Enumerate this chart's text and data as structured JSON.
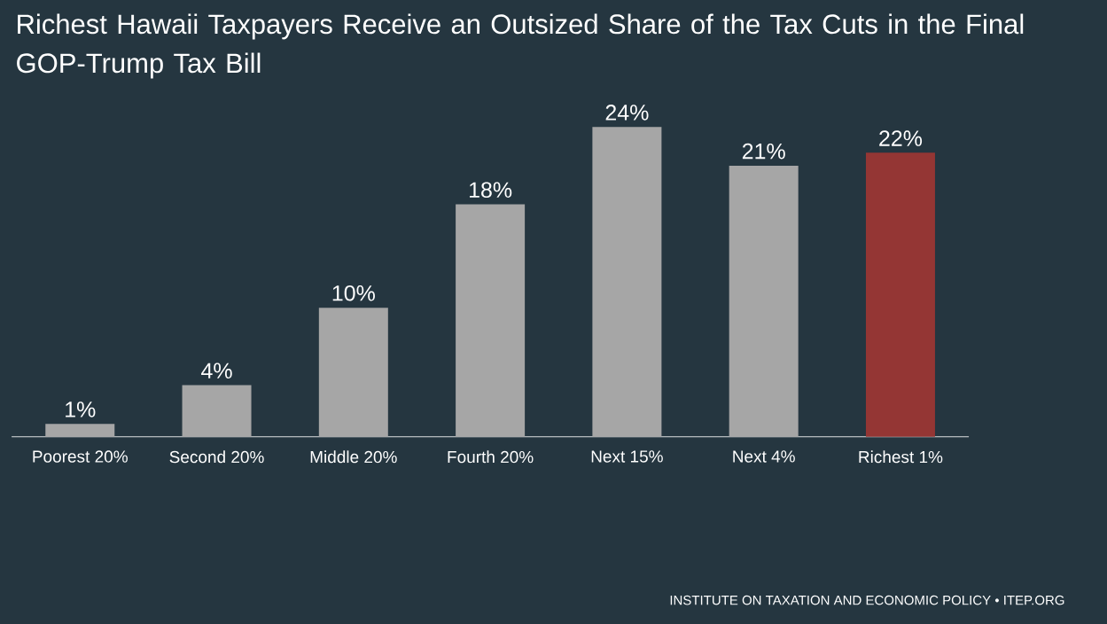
{
  "chart_data": {
    "type": "bar",
    "title": "Richest Hawaii Taxpayers Receive an Outsized Share of the Tax Cuts in the Final GOP-Trump Tax Bill",
    "categories": [
      "Poorest 20%",
      "Second 20%",
      "Middle 20%",
      "Fourth 20%",
      "Next 15%",
      "Next 4%",
      "Richest 1%"
    ],
    "values": [
      1,
      4,
      10,
      18,
      24,
      21,
      22
    ],
    "value_labels": [
      "1%",
      "4%",
      "10%",
      "18%",
      "24%",
      "21%",
      "22%"
    ],
    "colors": [
      "#a6a6a6",
      "#a6a6a6",
      "#a6a6a6",
      "#a6a6a6",
      "#a6a6a6",
      "#a6a6a6",
      "#943634"
    ],
    "annotations": [
      "INSTITUTE ON TAXATION AND ECONOMIC POLICY • ITEP.ORG"
    ]
  }
}
